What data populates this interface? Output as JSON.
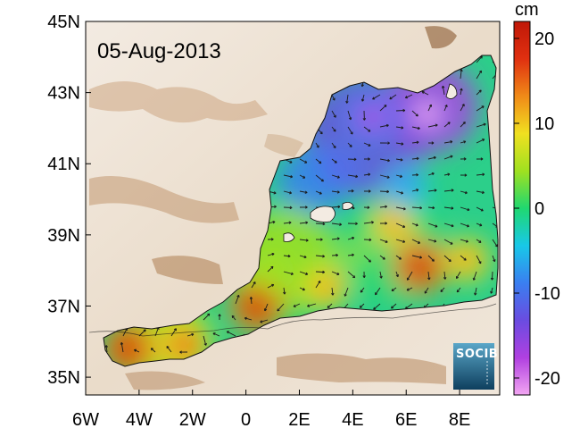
{
  "date_label": "05-Aug-2013",
  "colorbar": {
    "unit": "cm",
    "labels": [
      "20",
      "10",
      "0",
      "-10",
      "-20"
    ],
    "values": [
      20,
      10,
      0,
      -10,
      -20
    ],
    "range": [
      -22,
      22
    ],
    "colors": [
      "#f2a6f2",
      "#b040e0",
      "#6a4ce0",
      "#3a7ff0",
      "#18c8e8",
      "#20d870",
      "#a0e020",
      "#f0e020",
      "#f08a18",
      "#e03010",
      "#c01808"
    ]
  },
  "axes": {
    "lon_labels": [
      "6W",
      "4W",
      "2W",
      "0",
      "2E",
      "4E",
      "6E",
      "8E"
    ],
    "lon_values": [
      -6,
      -4,
      -2,
      0,
      2,
      4,
      6,
      8
    ],
    "lat_labels": [
      "45N",
      "43N",
      "41N",
      "39N",
      "37N",
      "35N"
    ],
    "lat_values": [
      45,
      43,
      41,
      39,
      37,
      35
    ],
    "lon_range": [
      -6,
      9.5
    ],
    "lat_range": [
      34.5,
      45
    ]
  },
  "logo": {
    "text": "SOCIB",
    "colors": {
      "top": "#5aa6c8",
      "bottom": "#0e3f5e"
    }
  },
  "colors": {
    "land_light": "#f6f1ec",
    "land_mid": "#e0cdb8",
    "land_dark": "#a87444",
    "coast": "#111111",
    "arrows": "#1a1a1a"
  },
  "anomaly_blobs": [
    {
      "lon": -4.4,
      "lat": 35.8,
      "value": 22
    },
    {
      "lon": -2.3,
      "lat": 35.9,
      "value": 18
    },
    {
      "lon": 0.4,
      "lat": 37.0,
      "value": 22
    },
    {
      "lon": 6.5,
      "lat": 38.1,
      "value": 22
    },
    {
      "lon": 5.5,
      "lat": 39.3,
      "value": 14
    },
    {
      "lon": 8.3,
      "lat": 38.3,
      "value": 15
    },
    {
      "lon": 3.0,
      "lat": 37.5,
      "value": 14
    },
    {
      "lon": 4.7,
      "lat": 42.3,
      "value": -18
    },
    {
      "lon": 6.8,
      "lat": 42.4,
      "value": -22
    },
    {
      "lon": 3.5,
      "lat": 40.8,
      "value": -12
    },
    {
      "lon": 6.0,
      "lat": 40.3,
      "value": -10
    },
    {
      "lon": 4.2,
      "lat": 38.5,
      "value": 3
    },
    {
      "lon": 1.0,
      "lat": 38.0,
      "value": 6
    }
  ]
}
